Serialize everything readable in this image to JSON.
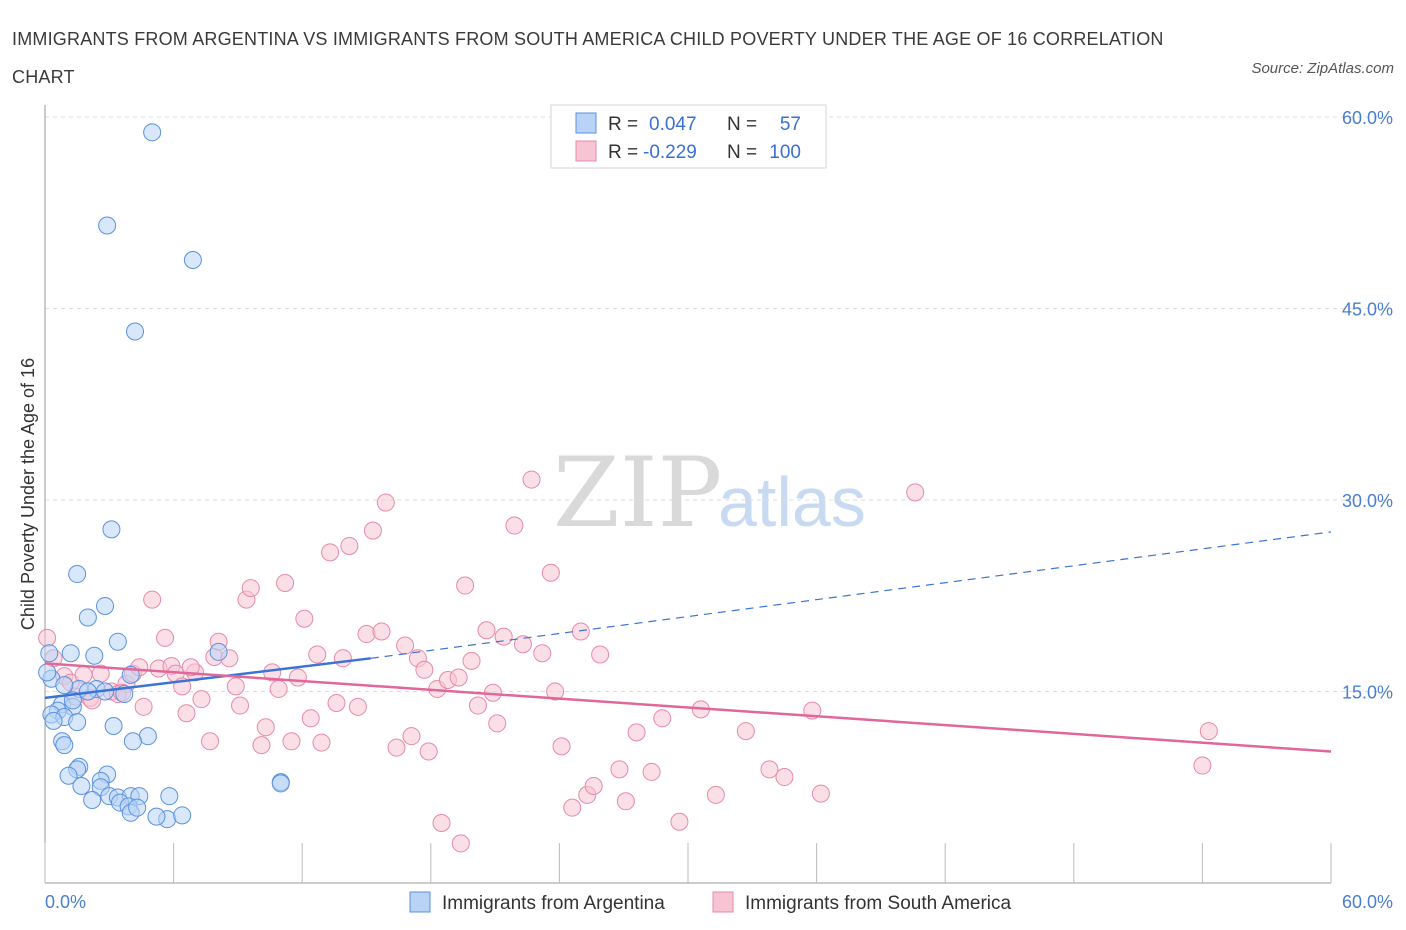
{
  "title": "IMMIGRANTS FROM ARGENTINA VS IMMIGRANTS FROM SOUTH AMERICA CHILD POVERTY UNDER THE AGE OF 16 CORRELATION CHART",
  "source": "Source: ZipAtlas.com",
  "watermark": {
    "zip": "ZIP",
    "atlas": "atlas"
  },
  "colors": {
    "argentina_fill": "#b8d3f5",
    "argentina_stroke": "#5b92dd",
    "argentina_line": "#3a74d4",
    "sa_fill": "#f7c4d4",
    "sa_stroke": "#e889aa",
    "sa_line": "#e0679a",
    "tick_label": "#4a7fd0",
    "grid": "#dddddd"
  },
  "legend": [
    {
      "r_label": "R =",
      "r_value": "0.047",
      "n_label": "N =",
      "n_value": "57"
    },
    {
      "r_label": "R =",
      "r_value": "-0.229",
      "n_label": "N =",
      "n_value": "100"
    }
  ],
  "bottom_legend": [
    "Immigrants from Argentina",
    "Immigrants from South America"
  ],
  "chart_data": {
    "type": "scatter",
    "title": "IMMIGRANTS FROM ARGENTINA VS IMMIGRANTS FROM SOUTH AMERICA CHILD POVERTY UNDER THE AGE OF 16 CORRELATION CHART",
    "xlabel": "",
    "ylabel": "Child Poverty Under the Age of 16",
    "xlim": [
      0,
      60
    ],
    "ylim": [
      0,
      60
    ],
    "x_tick_labels": [
      "0.0%",
      "60.0%"
    ],
    "y_tick_labels": [
      "15.0%",
      "30.0%",
      "45.0%",
      "60.0%"
    ],
    "y_ticks": [
      15,
      30,
      45,
      60
    ],
    "series": [
      {
        "name": "Immigrants from Argentina",
        "r": 0.047,
        "n": 57,
        "trend": {
          "x0": 0,
          "y0": 14.5,
          "x1": 15.2,
          "y1": 17.6,
          "dash_x1": 60,
          "dash_y1": 27.5
        },
        "points": [
          [
            5.0,
            58.8
          ],
          [
            2.9,
            51.5
          ],
          [
            6.9,
            48.8
          ],
          [
            4.2,
            43.2
          ],
          [
            3.1,
            27.7
          ],
          [
            1.5,
            24.2
          ],
          [
            2.8,
            21.7
          ],
          [
            2.0,
            20.8
          ],
          [
            3.4,
            18.9
          ],
          [
            1.2,
            18.0
          ],
          [
            2.3,
            17.8
          ],
          [
            8.1,
            18.1
          ],
          [
            0.2,
            18.0
          ],
          [
            0.3,
            16.0
          ],
          [
            4.0,
            16.3
          ],
          [
            2.4,
            15.2
          ],
          [
            2.8,
            15.0
          ],
          [
            3.7,
            14.8
          ],
          [
            1.6,
            15.2
          ],
          [
            2.0,
            15.0
          ],
          [
            0.8,
            14.0
          ],
          [
            1.3,
            13.8
          ],
          [
            0.6,
            13.5
          ],
          [
            0.3,
            13.2
          ],
          [
            0.9,
            13.0
          ],
          [
            0.4,
            12.7
          ],
          [
            1.5,
            12.6
          ],
          [
            3.2,
            12.3
          ],
          [
            4.8,
            11.5
          ],
          [
            0.8,
            11.1
          ],
          [
            4.1,
            11.1
          ],
          [
            0.9,
            10.8
          ],
          [
            1.6,
            9.1
          ],
          [
            1.5,
            8.9
          ],
          [
            2.9,
            8.5
          ],
          [
            1.1,
            8.4
          ],
          [
            2.6,
            8.0
          ],
          [
            1.7,
            7.6
          ],
          [
            2.6,
            7.5
          ],
          [
            11.0,
            7.9
          ],
          [
            11.0,
            7.8
          ],
          [
            3.0,
            6.8
          ],
          [
            3.4,
            6.7
          ],
          [
            4.0,
            6.8
          ],
          [
            4.4,
            6.8
          ],
          [
            5.8,
            6.8
          ],
          [
            2.2,
            6.5
          ],
          [
            3.5,
            6.3
          ],
          [
            3.9,
            6.0
          ],
          [
            4.0,
            5.5
          ],
          [
            5.7,
            5.0
          ],
          [
            4.3,
            5.9
          ],
          [
            5.2,
            5.2
          ],
          [
            6.4,
            5.3
          ],
          [
            0.1,
            16.5
          ],
          [
            0.9,
            15.5
          ],
          [
            1.3,
            14.3
          ]
        ]
      },
      {
        "name": "Immigrants from South America",
        "r": -0.229,
        "n": 100,
        "trend": {
          "x0": 0,
          "y0": 17.2,
          "x1": 60,
          "y1": 10.3
        },
        "points": [
          [
            0.1,
            19.2
          ],
          [
            0.4,
            17.6
          ],
          [
            0.9,
            16.2
          ],
          [
            1.2,
            15.7
          ],
          [
            1.8,
            16.3
          ],
          [
            1.4,
            14.6
          ],
          [
            2.1,
            14.5
          ],
          [
            2.6,
            16.4
          ],
          [
            3.1,
            15.0
          ],
          [
            3.4,
            14.8
          ],
          [
            3.8,
            15.6
          ],
          [
            4.1,
            16.4
          ],
          [
            4.4,
            16.9
          ],
          [
            4.6,
            13.8
          ],
          [
            5.0,
            22.2
          ],
          [
            5.3,
            16.8
          ],
          [
            5.6,
            19.2
          ],
          [
            5.9,
            17.0
          ],
          [
            6.1,
            16.4
          ],
          [
            6.4,
            15.4
          ],
          [
            6.6,
            13.3
          ],
          [
            7.0,
            16.5
          ],
          [
            7.3,
            14.4
          ],
          [
            7.7,
            11.1
          ],
          [
            7.9,
            17.7
          ],
          [
            8.1,
            18.9
          ],
          [
            8.6,
            17.6
          ],
          [
            8.9,
            15.4
          ],
          [
            9.1,
            13.9
          ],
          [
            9.4,
            22.2
          ],
          [
            9.6,
            23.1
          ],
          [
            10.1,
            10.8
          ],
          [
            10.3,
            12.2
          ],
          [
            10.6,
            16.5
          ],
          [
            10.9,
            15.2
          ],
          [
            11.2,
            23.5
          ],
          [
            11.5,
            11.1
          ],
          [
            11.8,
            16.1
          ],
          [
            12.1,
            20.7
          ],
          [
            12.4,
            12.9
          ],
          [
            12.7,
            17.9
          ],
          [
            12.9,
            11.0
          ],
          [
            13.3,
            25.9
          ],
          [
            13.6,
            14.1
          ],
          [
            13.9,
            17.6
          ],
          [
            14.2,
            26.4
          ],
          [
            14.6,
            13.8
          ],
          [
            15.0,
            19.5
          ],
          [
            15.3,
            27.6
          ],
          [
            15.7,
            19.7
          ],
          [
            15.9,
            29.8
          ],
          [
            16.4,
            10.6
          ],
          [
            16.8,
            18.6
          ],
          [
            17.1,
            11.5
          ],
          [
            17.4,
            17.6
          ],
          [
            17.7,
            16.7
          ],
          [
            17.9,
            10.3
          ],
          [
            18.3,
            15.2
          ],
          [
            18.5,
            4.7
          ],
          [
            18.8,
            15.9
          ],
          [
            19.3,
            16.1
          ],
          [
            19.6,
            23.3
          ],
          [
            19.9,
            17.4
          ],
          [
            20.2,
            13.9
          ],
          [
            20.6,
            19.8
          ],
          [
            20.9,
            14.9
          ],
          [
            21.1,
            12.5
          ],
          [
            21.4,
            19.3
          ],
          [
            21.9,
            28.0
          ],
          [
            22.3,
            18.7
          ],
          [
            22.7,
            31.6
          ],
          [
            23.2,
            18.0
          ],
          [
            23.6,
            24.3
          ],
          [
            23.8,
            15.0
          ],
          [
            24.1,
            10.7
          ],
          [
            24.6,
            5.9
          ],
          [
            25.0,
            19.7
          ],
          [
            25.3,
            6.9
          ],
          [
            25.6,
            7.6
          ],
          [
            25.9,
            17.9
          ],
          [
            26.8,
            8.9
          ],
          [
            27.1,
            6.4
          ],
          [
            27.6,
            11.8
          ],
          [
            28.3,
            8.7
          ],
          [
            28.8,
            12.9
          ],
          [
            29.6,
            4.8
          ],
          [
            30.6,
            13.6
          ],
          [
            31.3,
            6.9
          ],
          [
            32.7,
            11.9
          ],
          [
            33.8,
            8.9
          ],
          [
            34.5,
            8.3
          ],
          [
            35.8,
            13.5
          ],
          [
            36.2,
            7.0
          ],
          [
            40.6,
            30.6
          ],
          [
            54.3,
            11.9
          ],
          [
            54.0,
            9.2
          ],
          [
            2.2,
            14.3
          ],
          [
            6.8,
            16.9
          ],
          [
            19.4,
            3.1
          ],
          [
            3.6,
            14.9
          ]
        ]
      }
    ]
  }
}
